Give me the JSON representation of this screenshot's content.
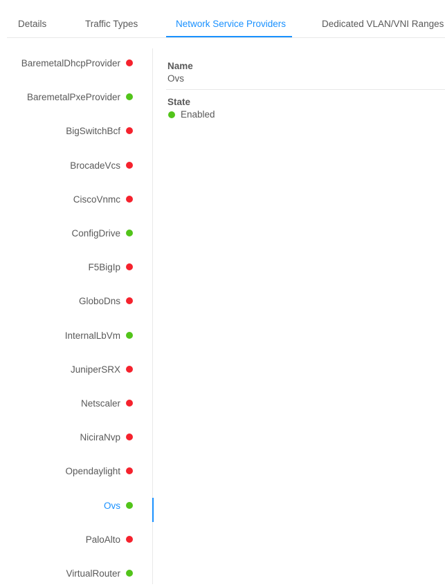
{
  "tabs": [
    {
      "label": "Details",
      "active": false
    },
    {
      "label": "Traffic Types",
      "active": false
    },
    {
      "label": "Network Service Providers",
      "active": true
    },
    {
      "label": "Dedicated VLAN/VNI Ranges",
      "active": false
    }
  ],
  "colors": {
    "accent": "#1890ff",
    "enabled": "#52c41a",
    "disabled": "#f5222d"
  },
  "providers": [
    {
      "name": "BaremetalDhcpProvider",
      "status": "disabled"
    },
    {
      "name": "BaremetalPxeProvider",
      "status": "enabled"
    },
    {
      "name": "BigSwitchBcf",
      "status": "disabled"
    },
    {
      "name": "BrocadeVcs",
      "status": "disabled"
    },
    {
      "name": "CiscoVnmc",
      "status": "disabled"
    },
    {
      "name": "ConfigDrive",
      "status": "enabled"
    },
    {
      "name": "F5BigIp",
      "status": "disabled"
    },
    {
      "name": "GloboDns",
      "status": "disabled"
    },
    {
      "name": "InternalLbVm",
      "status": "enabled"
    },
    {
      "name": "JuniperSRX",
      "status": "disabled"
    },
    {
      "name": "Netscaler",
      "status": "disabled"
    },
    {
      "name": "NiciraNvp",
      "status": "disabled"
    },
    {
      "name": "Opendaylight",
      "status": "disabled"
    },
    {
      "name": "Ovs",
      "status": "enabled",
      "selected": true
    },
    {
      "name": "PaloAlto",
      "status": "disabled"
    },
    {
      "name": "VirtualRouter",
      "status": "enabled"
    }
  ],
  "details": {
    "name_label": "Name",
    "name_value": "Ovs",
    "state_label": "State",
    "state_value": "Enabled",
    "state_status": "enabled"
  }
}
